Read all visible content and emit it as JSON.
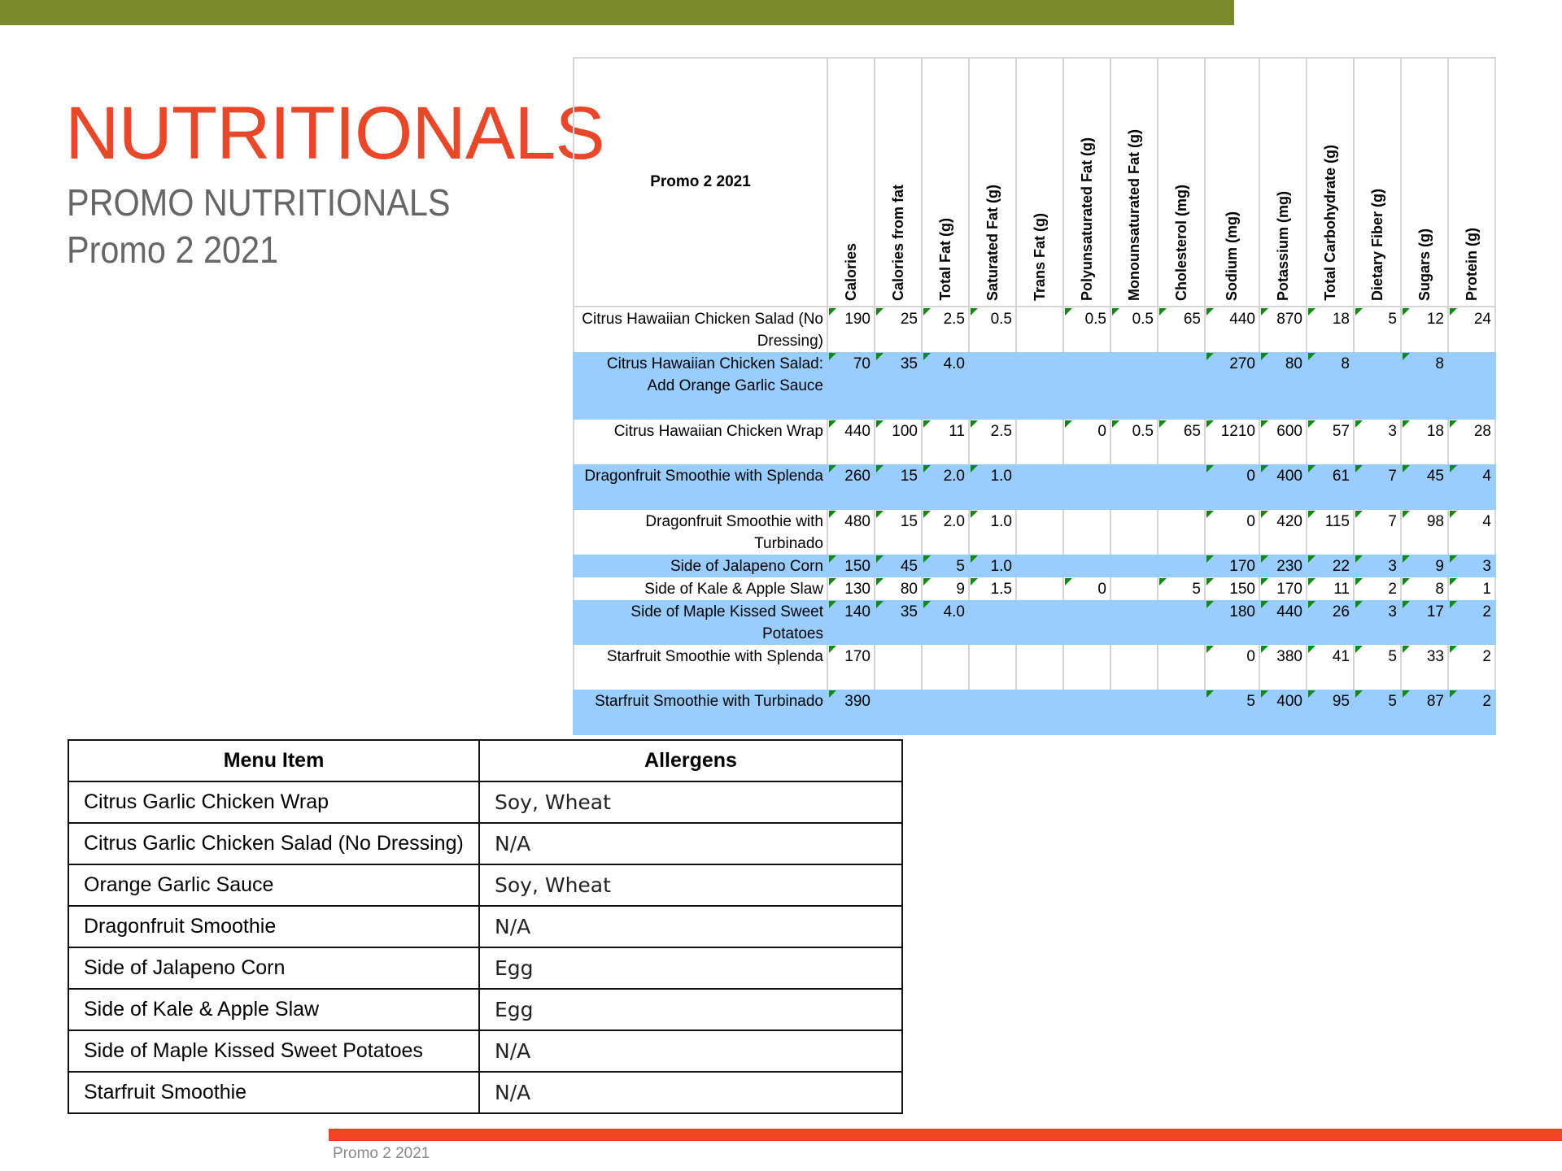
{
  "header": {
    "title": "NUTRITIONALS",
    "subtitle": "PROMO NUTRITIONALS",
    "promo": "Promo 2 2021",
    "accent": "#e8472a",
    "top_bar_color": "#7a8a2a",
    "bottom_bar_color": "#ee4422"
  },
  "nutrition": {
    "corner": "Promo 2 2021",
    "columns": [
      "Calories",
      "Calories from fat",
      "Total Fat (g)",
      "Saturated Fat (g)",
      "Trans Fat (g)",
      "Polyunsaturated Fat (g)",
      "Monounsaturated Fat (g)",
      "Cholesterol (mg)",
      "Sodium (mg)",
      "Potassium (mg)",
      "Total Carbohydrate (g)",
      "Dietary Fiber (g)",
      "Sugars (g)",
      "Protein (g)"
    ],
    "rows": [
      {
        "name": "Citrus Hawaiian Chicken Salad (No Dressing)",
        "values": [
          "190",
          "25",
          "2.5",
          "0.5",
          "",
          "0.5",
          "0.5",
          "65",
          "440",
          "870",
          "18",
          "5",
          "12",
          "24"
        ]
      },
      {
        "name": "Citrus Hawaiian Chicken Salad: Add Orange Garlic Sauce",
        "values": [
          "70",
          "35",
          "4.0",
          "",
          "",
          "",
          "",
          "",
          "270",
          "80",
          "8",
          "",
          "8",
          ""
        ]
      },
      {
        "name": "Citrus Hawaiian Chicken Wrap",
        "values": [
          "440",
          "100",
          "11",
          "2.5",
          "",
          "0",
          "0.5",
          "65",
          "1210",
          "600",
          "57",
          "3",
          "18",
          "28"
        ]
      },
      {
        "name": "Dragonfruit Smoothie with Splenda",
        "values": [
          "260",
          "15",
          "2.0",
          "1.0",
          "",
          "",
          "",
          "",
          "0",
          "400",
          "61",
          "7",
          "45",
          "4"
        ]
      },
      {
        "name": "Dragonfruit Smoothie with Turbinado",
        "values": [
          "480",
          "15",
          "2.0",
          "1.0",
          "",
          "",
          "",
          "",
          "0",
          "420",
          "115",
          "7",
          "98",
          "4"
        ]
      },
      {
        "name": "Side of Jalapeno Corn",
        "values": [
          "150",
          "45",
          "5",
          "1.0",
          "",
          "",
          "",
          "",
          "170",
          "230",
          "22",
          "3",
          "9",
          "3"
        ]
      },
      {
        "name": "Side of Kale & Apple Slaw",
        "values": [
          "130",
          "80",
          "9",
          "1.5",
          "",
          "0",
          "",
          "5",
          "150",
          "170",
          "11",
          "2",
          "8",
          "1"
        ]
      },
      {
        "name": "Side of Maple Kissed Sweet Potatoes",
        "values": [
          "140",
          "35",
          "4.0",
          "",
          "",
          "",
          "",
          "",
          "180",
          "440",
          "26",
          "3",
          "17",
          "2"
        ]
      },
      {
        "name": "Starfruit Smoothie with Splenda",
        "values": [
          "170",
          "",
          "",
          "",
          "",
          "",
          "",
          "",
          "0",
          "380",
          "41",
          "5",
          "33",
          "2"
        ]
      },
      {
        "name": "Starfruit Smoothie with Turbinado",
        "values": [
          "390",
          "",
          "",
          "",
          "",
          "",
          "",
          "",
          "5",
          "400",
          "95",
          "5",
          "87",
          "2"
        ]
      }
    ]
  },
  "allergens": {
    "headers": [
      "Menu Item",
      "Allergens"
    ],
    "rows": [
      [
        "Citrus Garlic Chicken Wrap",
        "Soy, Wheat"
      ],
      [
        "Citrus Garlic Chicken Salad (No Dressing)",
        "N/A"
      ],
      [
        "Orange Garlic Sauce",
        "Soy, Wheat"
      ],
      [
        "Dragonfruit Smoothie",
        "N/A"
      ],
      [
        "Side of Jalapeno Corn",
        "Egg"
      ],
      [
        "Side of Kale & Apple Slaw",
        "Egg"
      ],
      [
        "Side of Maple Kissed Sweet Potatoes",
        "N/A"
      ],
      [
        "Starfruit Smoothie",
        "N/A"
      ]
    ]
  },
  "footer": {
    "text": "Promo 2 2021"
  }
}
